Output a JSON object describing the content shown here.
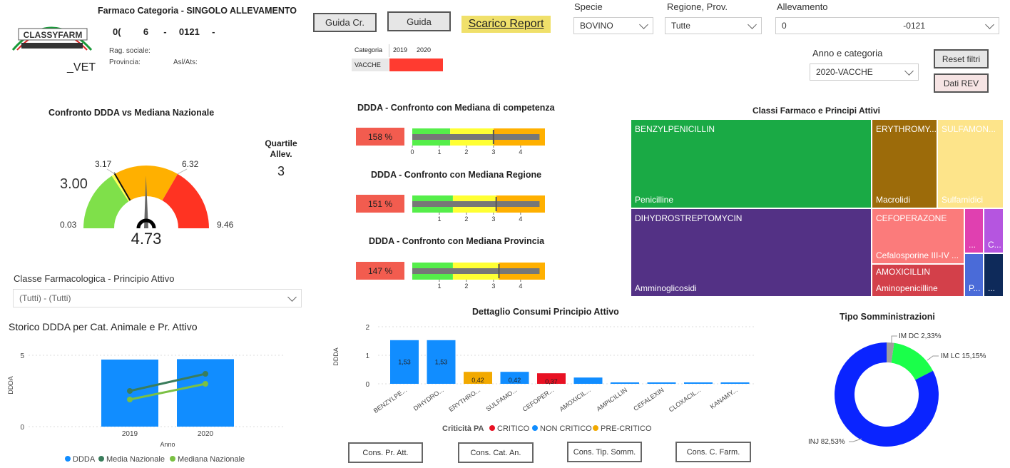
{
  "header": {
    "logo_text": "CLASSYFARM",
    "vet_text": "_VET",
    "title": "Farmaco Categoria - SINGOLO ALLEVAMENTO",
    "code_a": "0(",
    "code_b": "6",
    "code_sep": "-",
    "code_c": "0121",
    "code_d": "-",
    "rag_sociale_label": "Rag. sociale:",
    "provincia_label": "Provincia:",
    "asl_label": "Asl/Ats:"
  },
  "buttons": {
    "guida_cr": "Guida Cr.",
    "guida": "Guida",
    "scarico_report": "Scarico Report",
    "reset_filtri": "Reset filtri",
    "dati_rev": "Dati REV",
    "cons_pr_att": "Cons. Pr. Att.",
    "cons_cat_an": "Cons. Cat. An.",
    "cons_tip_somm": "Cons. Tip. Somm.",
    "cons_c_farm": "Cons. C. Farm."
  },
  "mini_table": {
    "headers": [
      "Categoria",
      "2019",
      "2020"
    ],
    "row_label": "VACCHE",
    "heat_color": "#ff3b30"
  },
  "filters": {
    "specie_label": "Specie",
    "specie_value": "BOVINO",
    "regione_label": "Regione, Prov.",
    "regione_value": "Tutte",
    "allevamento_label": "Allevamento",
    "allevamento_value_a": "0",
    "allevamento_value_b": "-0121",
    "anno_label": "Anno e categoria",
    "anno_value": "2020-VACCHE",
    "classe_label": "Classe Farmacologica - Principio Attivo",
    "classe_value": "(Tutti) - (Tutti)"
  },
  "gauge": {
    "title": "Confronto DDDA vs Mediana Nazionale",
    "min_label": "0.03",
    "q1_label": "3.00",
    "q2_label": "3.17",
    "q3_label": "6.32",
    "max_label": "9.46",
    "value_label": "4.73",
    "quartile_title_1": "Quartile",
    "quartile_title_2": "Allev.",
    "quartile_value": "3"
  },
  "bullets": {
    "items": [
      {
        "title": "DDDA - Confronto con Mediana di competenza",
        "pct": "158 %"
      },
      {
        "title": "DDDA - Confronto con Mediana Regione",
        "pct": "151 %"
      },
      {
        "title": "DDDA - Confronto con Mediana Provincia",
        "pct": "147 %"
      }
    ],
    "tick_labels": [
      "0",
      "1",
      "2",
      "3",
      "4"
    ]
  },
  "treemap": {
    "title": "Classi Farmaco e Principi Attivi",
    "cells": [
      {
        "top": "BENZYLPENICILLIN",
        "bottom": "Penicilline"
      },
      {
        "top": "ERYTHROMY...",
        "bottom": "Macrolidi"
      },
      {
        "top": "SULFAMON...",
        "bottom": "Sulfamidici"
      },
      {
        "top": "DIHYDROSTREPTOMYCIN",
        "bottom": "Amminoglicosidi"
      },
      {
        "top": "CEFOPERAZONE",
        "bottom": "Cefalosporine III-IV ..."
      },
      {
        "top": "...",
        "bottom": ""
      },
      {
        "top": "C...",
        "bottom": ""
      },
      {
        "top": "AMOXICILLIN",
        "bottom": "Aminopenicilline"
      },
      {
        "top": "P...",
        "bottom": ""
      },
      {
        "top": "...",
        "bottom": ""
      }
    ]
  },
  "storico": {
    "title": "Storico DDDA per Cat. Animale e Pr. Attivo",
    "ylabel": "DDDA",
    "xlabel": "Anno",
    "legend": [
      "DDDA",
      "Media Nazionale",
      "Mediana Nazionale"
    ]
  },
  "dettaglio": {
    "title": "Dettaglio Consumi Principio Attivo",
    "ylabel": "DDDA",
    "legend_title": "Criticità PA",
    "legend": [
      "CRITICO",
      "NON CRITICO",
      "PRE-CRITICO"
    ]
  },
  "donut": {
    "title": "Tipo Somministrazioni",
    "labels": [
      "IM DC 2,33%",
      "IM LC 15,15%",
      "INJ 82,53%"
    ]
  },
  "colors": {
    "blue": "#118dff",
    "dark_green": "#3a7d5c",
    "light_green": "#7bc043",
    "critico": "#e81123",
    "non_critico": "#118dff",
    "pre_critico": "#f2a900"
  },
  "chart_data": [
    {
      "type": "gauge",
      "title": "Confronto DDDA vs Mediana Nazionale",
      "min": 0.03,
      "max": 9.46,
      "value": 4.73,
      "bands": [
        {
          "from": 0.03,
          "to": 3.0,
          "color": "#7fe04a"
        },
        {
          "from": 3.0,
          "to": 3.17,
          "color": "#ffff55"
        },
        {
          "from": 3.17,
          "to": 6.32,
          "color": "#ffb000"
        },
        {
          "from": 6.32,
          "to": 9.46,
          "color": "#ff3322"
        }
      ],
      "target": 3.17
    },
    {
      "type": "bullet",
      "bullets": [
        {
          "title": "DDDA - Confronto con Mediana di competenza",
          "pct": 158,
          "value": 4.7,
          "target": 3.0,
          "bands": [
            1.4,
            3.0,
            4.9
          ]
        },
        {
          "title": "DDDA - Confronto con Mediana Regione",
          "pct": 151,
          "value": 4.7,
          "target": 3.1,
          "bands": [
            1.5,
            3.1,
            4.9
          ]
        },
        {
          "title": "DDDA - Confronto con Mediana Provincia",
          "pct": 147,
          "value": 4.7,
          "target": 3.2,
          "bands": [
            1.5,
            3.2,
            4.9
          ]
        }
      ],
      "xlim": [
        0,
        4.9
      ]
    },
    {
      "type": "treemap",
      "title": "Classi Farmaco e Principi Attivi",
      "items": [
        {
          "principio": "BENZYLPENICILLIN",
          "classe": "Penicilline",
          "value": 1.53
        },
        {
          "principio": "DIHYDROSTREPTOMYCIN",
          "classe": "Amminoglicosidi",
          "value": 1.53
        },
        {
          "principio": "ERYTHROMYCIN",
          "classe": "Macrolidi",
          "value": 0.42
        },
        {
          "principio": "SULFAMONOMETHOXINE",
          "classe": "Sulfamidici",
          "value": 0.42
        },
        {
          "principio": "CEFOPERAZONE",
          "classe": "Cefalosporine III-IV",
          "value": 0.37
        },
        {
          "principio": "AMOXICILLIN",
          "classe": "Aminopenicilline",
          "value": 0.22
        }
      ]
    },
    {
      "type": "bar",
      "title": "Storico DDDA per Cat. Animale e Pr. Attivo",
      "categories": [
        "2019",
        "2020"
      ],
      "series": [
        {
          "name": "DDDA",
          "kind": "bar",
          "values": [
            4.7,
            4.73
          ],
          "color": "#118dff"
        },
        {
          "name": "Media Nazionale",
          "kind": "line",
          "values": [
            2.5,
            3.7
          ],
          "color": "#3a7d5c"
        },
        {
          "name": "Mediana Nazionale",
          "kind": "line",
          "values": [
            1.9,
            3.0
          ],
          "color": "#7bc043"
        }
      ],
      "xlabel": "Anno",
      "ylabel": "DDDA",
      "ylim": [
        0,
        5
      ],
      "yticks": [
        0,
        5
      ]
    },
    {
      "type": "bar",
      "title": "Dettaglio Consumi Principio Attivo",
      "categories": [
        "BENZYLPE...",
        "DIHYDRO...",
        "ERYTHRO...",
        "SULFAMO...",
        "CEFOPER...",
        "AMOXICIL...",
        "AMPICILLIN",
        "CEFALEXIN",
        "CLOXACIL...",
        "KANAMY..."
      ],
      "values": [
        1.53,
        1.53,
        0.42,
        0.42,
        0.37,
        0.22,
        0.05,
        0.05,
        0.05,
        0.05
      ],
      "data_labels": [
        "1,53",
        "1,53",
        "0,42",
        "0,42",
        "0,37",
        "",
        "",
        "",
        "",
        ""
      ],
      "criticita": [
        "NON CRITICO",
        "NON CRITICO",
        "PRE-CRITICO",
        "NON CRITICO",
        "CRITICO",
        "NON CRITICO",
        "NON CRITICO",
        "NON CRITICO",
        "NON CRITICO",
        "NON CRITICO"
      ],
      "ylabel": "DDDA",
      "ylim": [
        0,
        2
      ],
      "yticks": [
        0,
        1,
        2
      ]
    },
    {
      "type": "pie",
      "title": "Tipo Somministrazioni",
      "donut": true,
      "slices": [
        {
          "label": "IM DC",
          "value": 2.33,
          "color": "#9e9e9e"
        },
        {
          "label": "IM LC",
          "value": 15.15,
          "color": "#1aff4a"
        },
        {
          "label": "INJ",
          "value": 82.53,
          "color": "#0a24ff"
        }
      ]
    }
  ]
}
